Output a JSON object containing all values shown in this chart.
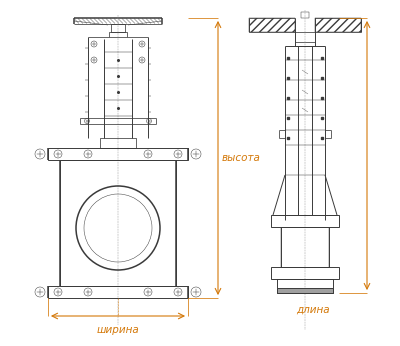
{
  "bg_color": "#ffffff",
  "line_color": "#3a3a3a",
  "dim_color": "#d4790a",
  "text_color": "#3a3a3a",
  "label_ширина": "ширина",
  "label_длина": "длина",
  "label_высота": "высота",
  "fig_width": 4.0,
  "fig_height": 3.46,
  "dpi": 100
}
